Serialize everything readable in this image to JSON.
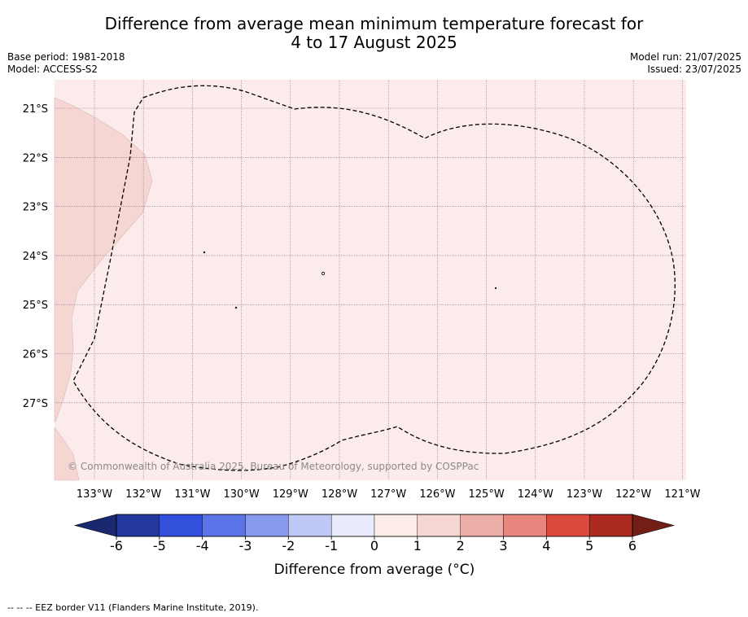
{
  "header": {
    "title_line1": "Difference from average mean minimum temperature forecast for",
    "title_line2": "4 to 17 August 2025",
    "base_period": "Base period: 1981-2018",
    "model": "Model: ACCESS-S2",
    "model_run": "Model run: 21/07/2025",
    "issued": "Issued: 23/07/2025"
  },
  "map": {
    "lat_labels": [
      "21°S",
      "22°S",
      "23°S",
      "24°S",
      "25°S",
      "26°S",
      "27°S"
    ],
    "lon_labels": [
      "133°W",
      "132°W",
      "131°W",
      "130°W",
      "129°W",
      "128°W",
      "127°W",
      "126°W",
      "125°W",
      "124°W",
      "123°W",
      "122°W",
      "121°W"
    ],
    "background_anomaly_class": "0 to 1",
    "west_region_anomaly_class": "1 to 2",
    "copyright": "© Commonwealth of Australia 2025, Bureau of Meteorology, supported by COSPPac"
  },
  "colorbar": {
    "ticks": [
      "-6",
      "-5",
      "-4",
      "-3",
      "-2",
      "-1",
      "0",
      "1",
      "2",
      "3",
      "4",
      "5",
      "6"
    ],
    "colors": [
      "#2538a0",
      "#3250dc",
      "#5a73e6",
      "#8799ee",
      "#c0c9f5",
      "#e7ebfb",
      "#fcecea",
      "#f5d6d3",
      "#edaea8",
      "#e8857d",
      "#dc4a3e",
      "#ad2a21"
    ],
    "low_extend_color": "#1a2870",
    "high_extend_color": "#731f18",
    "label": "Difference from average (°C)"
  },
  "colors": {
    "background_fill": "#fbebea",
    "west_fill": "#f5d6d3"
  },
  "legend": {
    "eez_note": "--  --  -- EEZ border V11 (Flanders Marine Institute, 2019)."
  }
}
